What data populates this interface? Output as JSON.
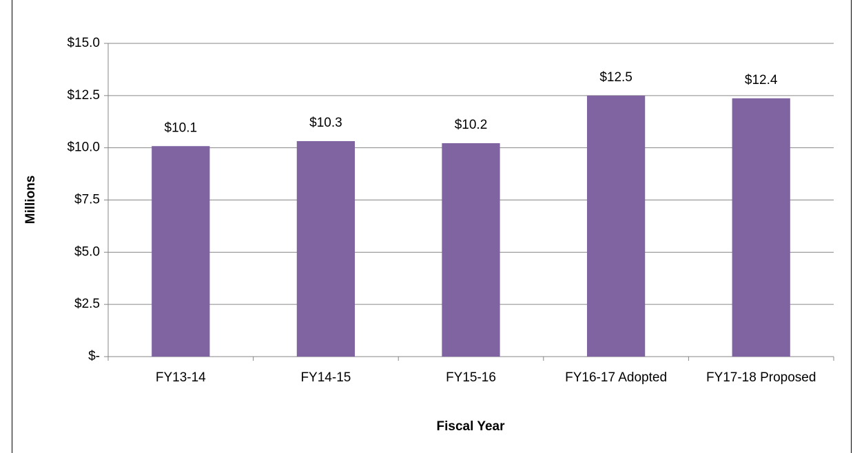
{
  "chart_data": {
    "type": "bar",
    "x_label": "Fiscal Year",
    "y_label": "Millions",
    "categories": [
      "FY13-14",
      "FY14-15",
      "FY15-16",
      "FY16-17 Adopted",
      "FY17-18 Proposed"
    ],
    "values": [
      10.08,
      10.32,
      10.22,
      12.5,
      12.37
    ],
    "value_labels": [
      "$10.1",
      "$10.3",
      "$10.2",
      "$12.5",
      "$12.4"
    ],
    "color": "#8064a2",
    "ylim": [
      0,
      15
    ],
    "yticks": [
      {
        "value": 0,
        "label": "$-"
      },
      {
        "value": 2.5,
        "label": "$2.5"
      },
      {
        "value": 5,
        "label": "$5.0"
      },
      {
        "value": 7.5,
        "label": "$7.5"
      },
      {
        "value": 10,
        "label": "$10.0"
      },
      {
        "value": 12.5,
        "label": "$12.5"
      },
      {
        "value": 15,
        "label": "$15.0"
      }
    ],
    "grid": true
  }
}
